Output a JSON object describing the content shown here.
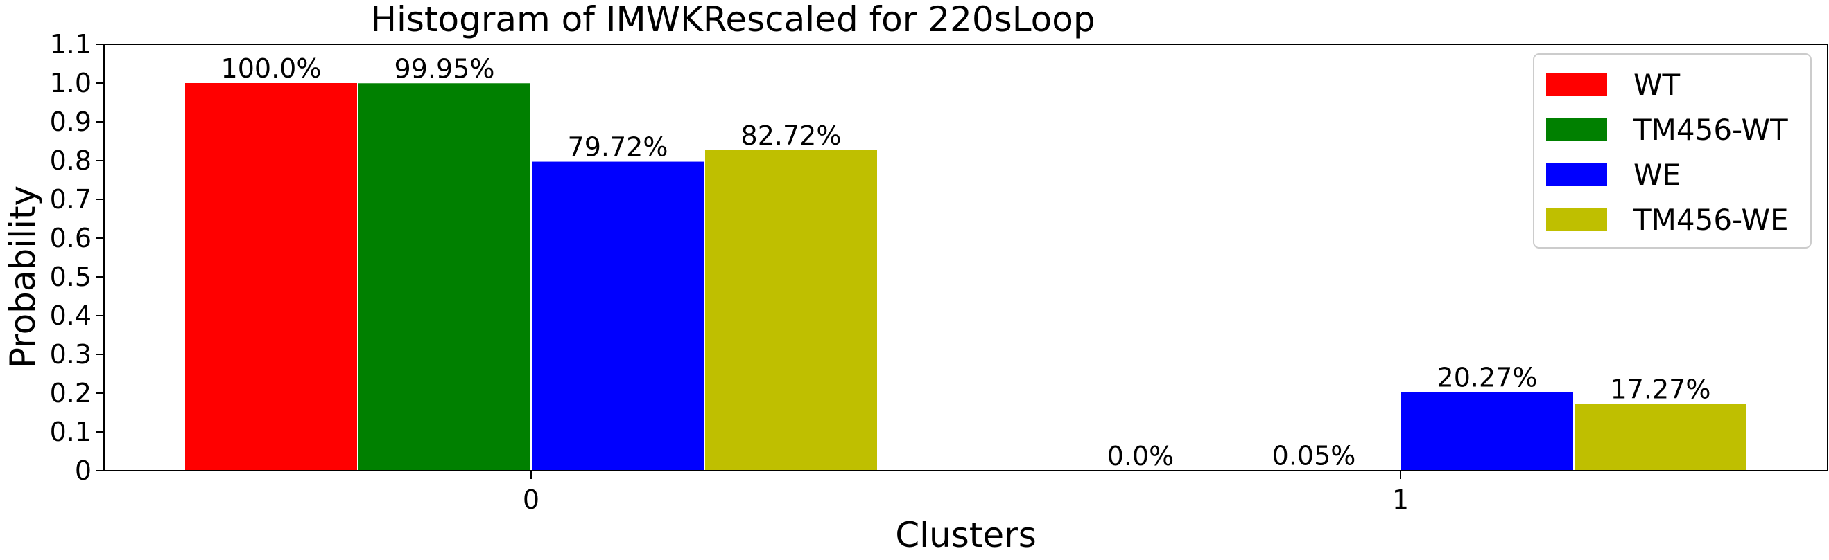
{
  "chart_data": {
    "type": "bar",
    "title": "Histogram of IMWKRescaled for 220sLoop",
    "xlabel": "Clusters",
    "ylabel": "Probability",
    "categories": [
      "0",
      "1"
    ],
    "ylim": [
      0,
      1.1
    ],
    "yticks": [
      "0",
      "0.1",
      "0.2",
      "0.3",
      "0.4",
      "0.5",
      "0.6",
      "0.7",
      "0.8",
      "0.9",
      "1.0",
      "1.1"
    ],
    "grid": false,
    "legend_position": "top-right",
    "series": [
      {
        "name": "WT",
        "color": "#ff0000",
        "values": [
          1.0,
          0.0
        ],
        "labels": [
          "100.0%",
          "0.0%"
        ]
      },
      {
        "name": "TM456-WT",
        "color": "#008000",
        "values": [
          0.9995,
          0.0005
        ],
        "labels": [
          "99.95%",
          "0.05%"
        ]
      },
      {
        "name": "WE",
        "color": "#0000ff",
        "values": [
          0.7972,
          0.2027
        ],
        "labels": [
          "79.72%",
          "20.27%"
        ]
      },
      {
        "name": "TM456-WE",
        "color": "#bfbf00",
        "values": [
          0.8272,
          0.1727
        ],
        "labels": [
          "82.72%",
          "17.27%"
        ]
      }
    ]
  }
}
